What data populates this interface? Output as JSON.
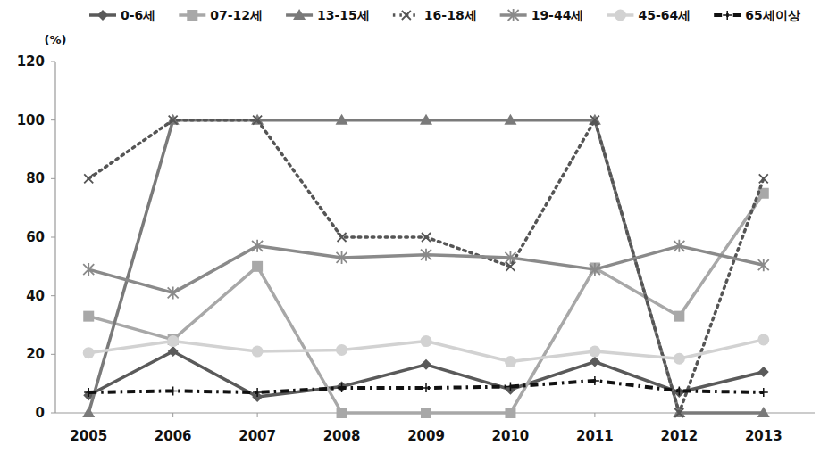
{
  "chart_data": {
    "type": "line",
    "y_label": "(%)",
    "categories": [
      "2005",
      "2006",
      "2007",
      "2008",
      "2009",
      "2010",
      "2011",
      "2012",
      "2013"
    ],
    "ylim": [
      0,
      120
    ],
    "yticks": [
      0,
      20,
      40,
      60,
      80,
      100,
      120
    ],
    "grid": false,
    "legend": "top",
    "series": [
      {
        "name": "0-6세",
        "color": "#5a5a5a",
        "marker": "diamond",
        "line_style": "solid",
        "values": [
          6,
          21,
          5.5,
          9,
          16.5,
          8,
          17.5,
          7,
          14
        ]
      },
      {
        "name": "07-12세",
        "color": "#a8a8a8",
        "marker": "square",
        "line_style": "solid",
        "values": [
          33,
          25,
          50,
          0,
          0,
          0,
          49.5,
          33,
          75
        ]
      },
      {
        "name": "13-15세",
        "color": "#7a7a7a",
        "marker": "triangle",
        "line_style": "solid",
        "values": [
          0,
          100,
          100,
          100,
          100,
          100,
          100,
          0,
          0
        ]
      },
      {
        "name": "16-18세",
        "color": "#555555",
        "marker": "x",
        "line_style": "dotted",
        "values": [
          80,
          100,
          100,
          60,
          60,
          50,
          100,
          0,
          80
        ]
      },
      {
        "name": "19-44세",
        "color": "#8a8a8a",
        "marker": "star",
        "line_style": "solid",
        "values": [
          49,
          41,
          57,
          53,
          54,
          53,
          49,
          57,
          50.5
        ]
      },
      {
        "name": "45-64세",
        "color": "#d2d2d2",
        "marker": "circle",
        "line_style": "solid",
        "values": [
          20.5,
          24.5,
          21,
          21.5,
          24.5,
          17.5,
          21,
          18.5,
          25
        ]
      },
      {
        "name": "65세이상",
        "color": "#111111",
        "marker": "plus",
        "line_style": "dashdot",
        "values": [
          7,
          7.5,
          7,
          8.5,
          8.5,
          9,
          11,
          7.5,
          7
        ]
      }
    ]
  }
}
